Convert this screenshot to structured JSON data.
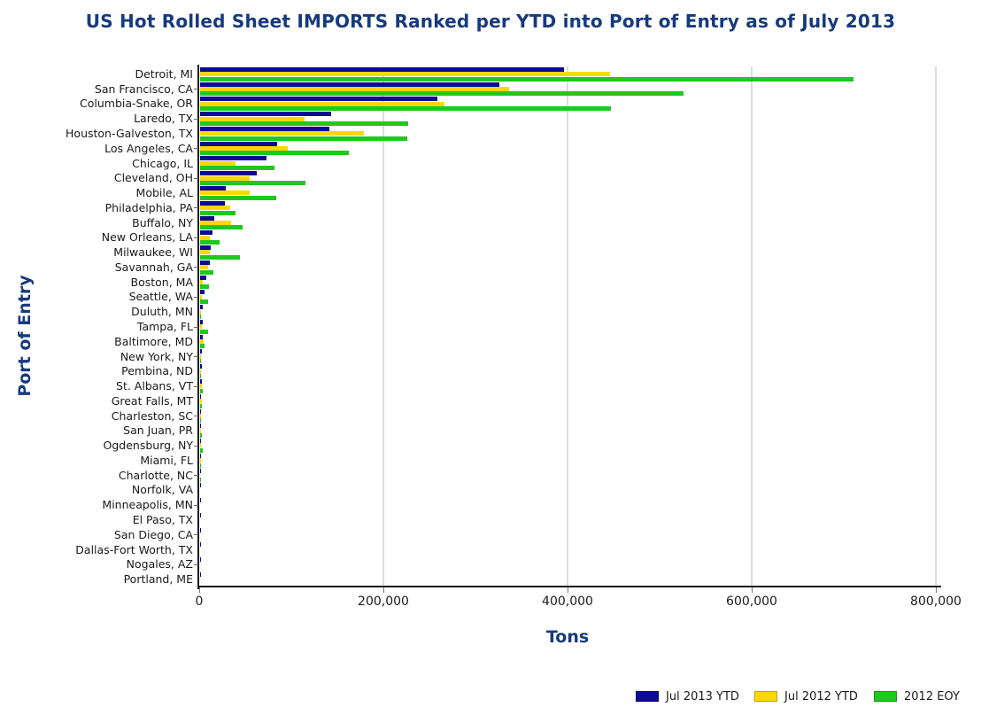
{
  "title": "US Hot Rolled Sheet IMPORTS Ranked per YTD into Port of Entry as of July 2013",
  "colors": {
    "title_navy": "#163a7d",
    "axis_line": "#1a1a1a",
    "gridline": "#dcdcdc",
    "series_navy": "#0b0b94",
    "series_yellow": "#ffd700",
    "series_green": "#1fc81f"
  },
  "chart_data": {
    "type": "bar",
    "orientation": "horizontal",
    "title": "US Hot Rolled Sheet IMPORTS Ranked per YTD into Port of Entry as of July 2013",
    "xlabel": "Tons",
    "ylabel": "Port of Entry",
    "xlim": [
      0,
      800000
    ],
    "grid": "vertical-gridlines",
    "legend_position": "bottom-right",
    "xticks": [
      {
        "value": 0,
        "label": "0"
      },
      {
        "value": 200000,
        "label": "200,000"
      },
      {
        "value": 400000,
        "label": "400,000"
      },
      {
        "value": 600000,
        "label": "600,000"
      },
      {
        "value": 800000,
        "label": "800,000"
      }
    ],
    "categories": [
      "Detroit, MI",
      "San Francisco, CA",
      "Columbia-Snake, OR",
      "Laredo, TX",
      "Houston-Galveston, TX",
      "Los Angeles, CA",
      "Chicago, IL",
      "Cleveland, OH",
      "Mobile, AL",
      "Philadelphia, PA",
      "Buffalo, NY",
      "New Orleans, LA",
      "Milwaukee, WI",
      "Savannah, GA",
      "Boston, MA",
      "Seattle, WA",
      "Duluth, MN",
      "Tampa, FL",
      "Baltimore, MD",
      "New York, NY",
      "Pembina, ND",
      "St. Albans, VT",
      "Great Falls, MT",
      "Charleston, SC",
      "San Juan, PR",
      "Ogdensburg, NY",
      "Miami, FL",
      "Charlotte, NC",
      "Norfolk, VA",
      "Minneapolis, MN",
      "El Paso, TX",
      "San Diego, CA",
      "Dallas-Fort Worth, TX",
      "Nogales, AZ",
      "Portland, ME"
    ],
    "series": [
      {
        "name": "Jul 2013 YTD",
        "color": "#0b0b94",
        "values": [
          395000,
          325000,
          258000,
          142000,
          140000,
          84000,
          72000,
          62000,
          28000,
          27000,
          15000,
          13000,
          12000,
          11000,
          7000,
          5000,
          3000,
          2600,
          2400,
          2200,
          1800,
          1600,
          1400,
          1200,
          900,
          700,
          400,
          250,
          180,
          150,
          120,
          90,
          60,
          40,
          20
        ]
      },
      {
        "name": "Jul 2012 YTD",
        "color": "#ffd700",
        "values": [
          445000,
          336000,
          265000,
          113000,
          178000,
          95000,
          38000,
          54000,
          54000,
          33000,
          34000,
          11000,
          10500,
          9000,
          3000,
          1500,
          400,
          1500,
          4000,
          1000,
          300,
          1500,
          2000,
          200,
          300,
          200,
          100,
          0,
          0,
          0,
          0,
          0,
          0,
          0,
          0
        ]
      },
      {
        "name": "2012 EOY",
        "color": "#1fc81f",
        "values": [
          710000,
          525000,
          446000,
          226000,
          225000,
          162000,
          81000,
          114000,
          83000,
          38000,
          46000,
          21000,
          43000,
          14000,
          10000,
          9000,
          800,
          8500,
          5000,
          1200,
          1000,
          2500,
          2200,
          1000,
          2000,
          2500,
          300,
          150,
          0,
          0,
          0,
          0,
          0,
          0,
          0
        ]
      }
    ]
  },
  "legend": {
    "items": [
      {
        "label": "Jul 2013 YTD",
        "color": "#0b0b94"
      },
      {
        "label": "Jul 2012 YTD",
        "color": "#ffd700"
      },
      {
        "label": "2012 EOY",
        "color": "#1fc81f"
      }
    ]
  }
}
